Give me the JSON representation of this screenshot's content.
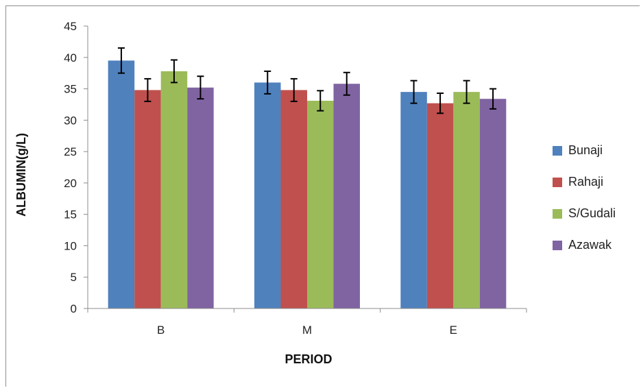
{
  "chart_data": {
    "type": "bar",
    "title": "",
    "xlabel": "PERIOD",
    "ylabel": "ALBUMIN(g/L)",
    "categories": [
      "B",
      "M",
      "E"
    ],
    "ylim": [
      0,
      45
    ],
    "yticks": [
      0,
      5,
      10,
      15,
      20,
      25,
      30,
      35,
      40,
      45
    ],
    "grid": false,
    "legend_position": "right",
    "error_bars": true,
    "series": [
      {
        "name": "Bunaji",
        "color": "#4f81bd",
        "values": [
          39.5,
          36.0,
          34.5
        ],
        "errors": [
          2.0,
          1.8,
          1.8
        ]
      },
      {
        "name": "Rahaji",
        "color": "#c0504d",
        "values": [
          34.8,
          34.8,
          32.7
        ],
        "errors": [
          1.8,
          1.8,
          1.6
        ]
      },
      {
        "name": "S/Gudali",
        "color": "#9bbb59",
        "values": [
          37.8,
          33.1,
          34.5
        ],
        "errors": [
          1.8,
          1.6,
          1.8
        ]
      },
      {
        "name": "Azawak",
        "color": "#8064a2",
        "values": [
          35.2,
          35.8,
          33.4
        ],
        "errors": [
          1.8,
          1.8,
          1.6
        ]
      }
    ]
  }
}
